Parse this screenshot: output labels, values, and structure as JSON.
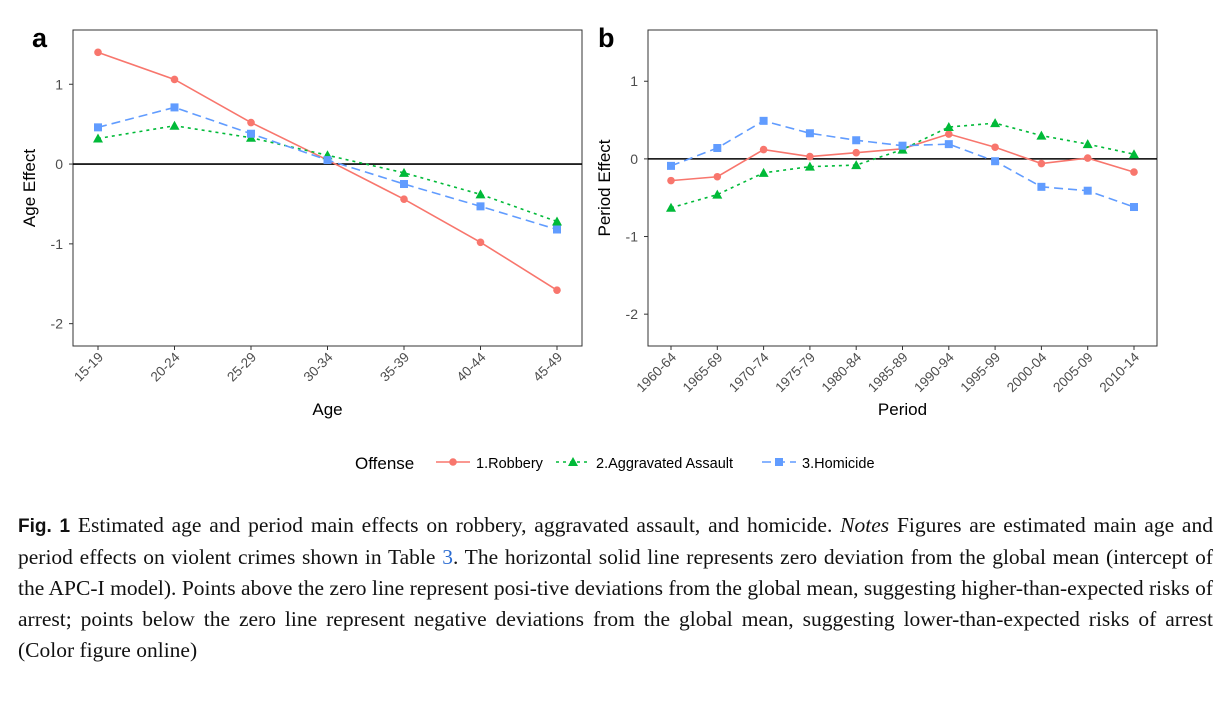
{
  "colors": {
    "robbery": "#F8766D",
    "assault": "#00BA38",
    "homicide": "#619CFF",
    "axis": "#333333"
  },
  "legend": {
    "title": "Offense",
    "items": [
      "1.Robbery",
      "2.Aggravated Assault",
      "3.Homicide"
    ]
  },
  "chart_data": [
    {
      "panel": "a",
      "type": "line",
      "xlabel": "Age",
      "ylabel": "Age Effect",
      "categories": [
        "15-19",
        "20-24",
        "25-29",
        "30-34",
        "35-39",
        "40-44",
        "45-49"
      ],
      "yticks": [
        1,
        0,
        -1,
        -2
      ],
      "ylim": [
        -2.28,
        1.68
      ],
      "hline": 0,
      "series": [
        {
          "name": "1.Robbery",
          "values": [
            1.4,
            1.06,
            0.52,
            0.05,
            -0.44,
            -0.98,
            -1.58
          ]
        },
        {
          "name": "2.Aggravated Assault",
          "values": [
            0.32,
            0.48,
            0.33,
            0.11,
            -0.11,
            -0.38,
            -0.72
          ]
        },
        {
          "name": "3.Homicide",
          "values": [
            0.46,
            0.71,
            0.38,
            0.05,
            -0.25,
            -0.53,
            -0.82
          ]
        }
      ]
    },
    {
      "panel": "b",
      "type": "line",
      "xlabel": "Period",
      "ylabel": "Period Effect",
      "categories": [
        "1960-64",
        "1965-69",
        "1970-74",
        "1975-79",
        "1980-84",
        "1985-89",
        "1990-94",
        "1995-99",
        "2000-04",
        "2005-09",
        "2010-14"
      ],
      "yticks": [
        1,
        0,
        -1,
        -2
      ],
      "ylim": [
        -2.41,
        1.66
      ],
      "hline": 0,
      "series": [
        {
          "name": "1.Robbery",
          "values": [
            -0.28,
            -0.23,
            0.12,
            0.03,
            0.08,
            0.13,
            0.32,
            0.15,
            -0.06,
            0.01,
            -0.17
          ]
        },
        {
          "name": "2.Aggravated Assault",
          "values": [
            -0.63,
            -0.46,
            -0.18,
            -0.1,
            -0.08,
            0.12,
            0.41,
            0.46,
            0.3,
            0.19,
            0.06
          ]
        },
        {
          "name": "3.Homicide",
          "values": [
            -0.09,
            0.14,
            0.49,
            0.33,
            0.24,
            0.17,
            0.19,
            -0.03,
            -0.36,
            -0.41,
            -0.62
          ]
        }
      ]
    }
  ],
  "caption": {
    "fig": "Fig. 1",
    "part1": "  Estimated age and period main effects on robbery, aggravated assault, and homicide. ",
    "notes": "Notes",
    "part2": " Figures are estimated main age and period effects on violent crimes shown in Table ",
    "table_ref": "3",
    "part3": ". The horizontal solid line represents zero deviation from the global mean (intercept of the APC-I model). Points above the zero line represent posi-tive deviations from the global mean, suggesting higher-than-expected risks of arrest; points below the zero line represent negative deviations from the global mean, suggesting lower-than-expected risks of arrest (Color figure online)"
  }
}
